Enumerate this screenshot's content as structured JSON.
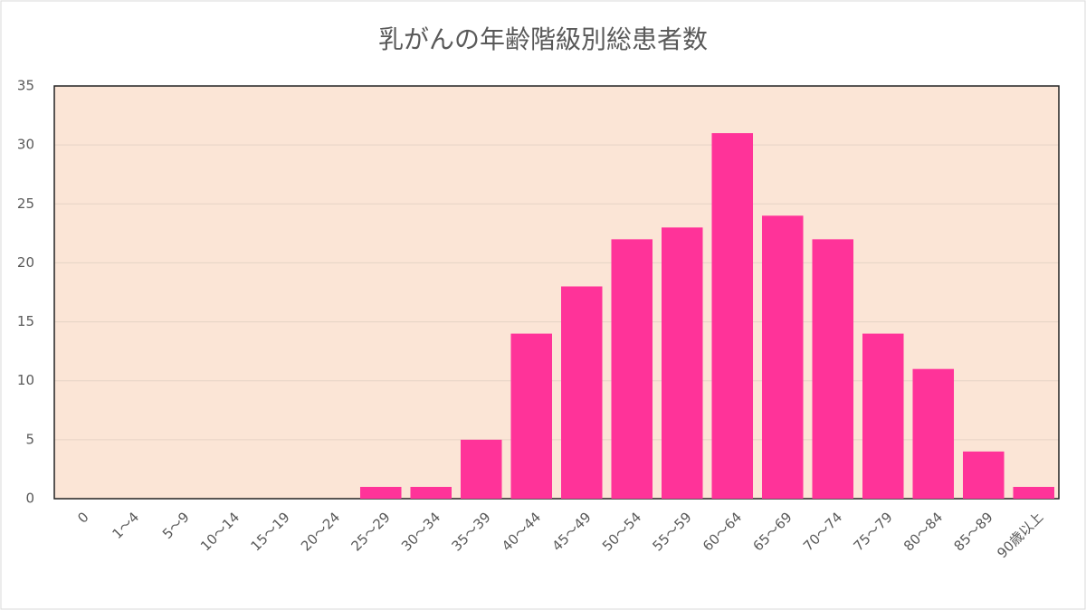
{
  "chart_data": {
    "type": "bar",
    "title": "乳がんの年齢階級別総患者数",
    "categories": [
      "0",
      "1～4",
      "5～9",
      "10～14",
      "15～19",
      "20～24",
      "25～29",
      "30～34",
      "35～39",
      "40～44",
      "45～49",
      "50～54",
      "55～59",
      "60～64",
      "65～69",
      "70～74",
      "75～79",
      "80～84",
      "85～89",
      "90歳以上"
    ],
    "values": [
      0,
      0,
      0,
      0,
      0,
      0,
      1,
      1,
      5,
      14,
      18,
      22,
      23,
      31,
      24,
      22,
      14,
      11,
      4,
      1
    ],
    "color": "#ff3399",
    "ylim": [
      0,
      35
    ],
    "yticks": [
      0,
      5,
      10,
      15,
      20,
      25,
      30,
      35
    ],
    "grid": true
  }
}
